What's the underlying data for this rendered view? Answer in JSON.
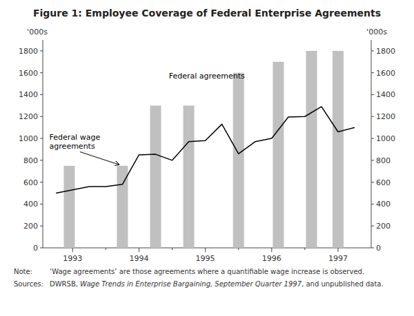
{
  "chart_data": {
    "type": "bar",
    "title": "Figure 1: Employee Coverage of Federal Enterprise Agreements",
    "ylabel": "'000s",
    "y2label": "'000s",
    "series": [
      {
        "type": "bar",
        "color": "#C0C0C0",
        "x": [
          1992.95,
          1993.75,
          1994.25,
          1994.75,
          1995.5,
          1996.1,
          1996.6,
          1997.0
        ],
        "values": [
          750,
          750,
          1300,
          1300,
          1600,
          1700,
          1800,
          1800
        ]
      },
      {
        "type": "line",
        "color": "#000000",
        "x": [
          1992.75,
          1993.0,
          1993.25,
          1993.5,
          1993.75,
          1994.0,
          1994.25,
          1994.5,
          1994.75,
          1995.0,
          1995.25,
          1995.5,
          1995.75,
          1996.0,
          1996.25,
          1996.5,
          1996.75,
          1997.0,
          1997.25
        ],
        "values": [
          500,
          530,
          560,
          560,
          580,
          850,
          855,
          800,
          970,
          980,
          1130,
          860,
          970,
          1000,
          1195,
          1200,
          1290,
          1060,
          1100
        ]
      }
    ],
    "xlim": [
      1992.55,
      1997.5
    ],
    "xticks": [
      1993,
      1994,
      1995,
      1996,
      1997
    ],
    "minor_xticks": [
      1993.5,
      1994.5,
      1995.5,
      1996.5
    ],
    "ylim": [
      0,
      1900
    ],
    "yticks": [
      0,
      200,
      400,
      600,
      800,
      1000,
      1200,
      1400,
      1600,
      1800
    ],
    "y2lim": [
      0,
      1900
    ],
    "y2ticks": [
      0,
      200,
      400,
      600,
      800,
      1000,
      1200,
      1400,
      1600,
      1800
    ],
    "grid": false,
    "annotations": [
      {
        "text": "Federal agreements",
        "x": 1994.45,
        "y": 1545
      },
      {
        "text": "Federal wage\nagreements",
        "x": 1992.65,
        "y": 975,
        "arrow_x": 1993.7,
        "arrow_y": 760
      }
    ],
    "notes": [
      {
        "label": "Note:",
        "parts": [
          {
            "text": "‘Wage agreements’ are those agreements where a quantifiable wage increase is observed."
          }
        ]
      },
      {
        "label": "Sources:",
        "parts": [
          {
            "text": "DWRSB, "
          },
          {
            "text": "Wage Trends in Enterprise Bargaining, September Quarter 1997",
            "italic": true
          },
          {
            "text": ", and unpublished data."
          }
        ]
      }
    ]
  }
}
